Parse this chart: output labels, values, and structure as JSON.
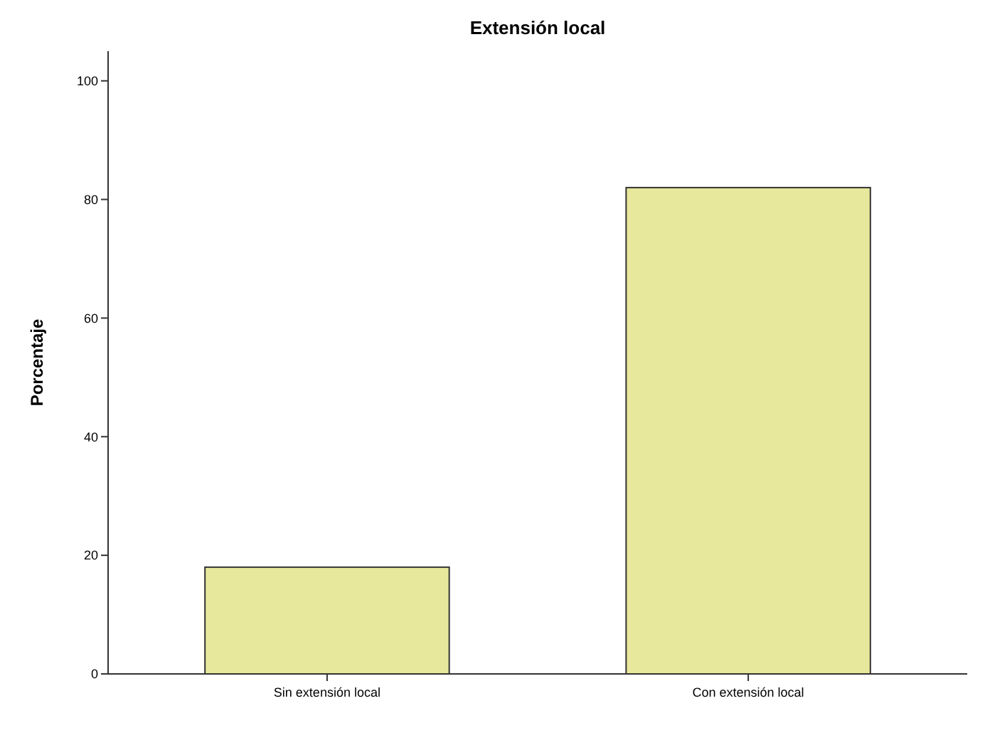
{
  "chart_data": {
    "type": "bar",
    "title": "Extensión local",
    "ylabel": "Porcentaje",
    "categories": [
      "Sin extensión local",
      "Con extensión local"
    ],
    "values": [
      18,
      82
    ],
    "color": "#e8e89c",
    "ylim": [
      0,
      105
    ],
    "yticks": [
      0,
      20,
      40,
      60,
      80,
      100
    ],
    "grid": false
  }
}
